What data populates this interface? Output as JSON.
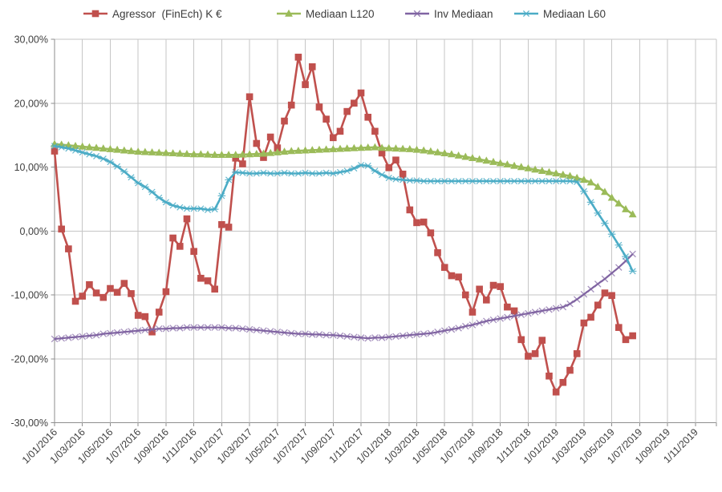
{
  "chart_data": {
    "type": "line",
    "title": "",
    "legend_position": "top",
    "grid": true,
    "background": "#ffffff",
    "grid_color": "#c6c6c6",
    "axis_color": "#8e8e8e",
    "text_color": "#404040",
    "x_axis": {
      "tick_labels": [
        "1/01/2016",
        "1/03/2016",
        "1/05/2016",
        "1/07/2016",
        "1/09/2016",
        "1/11/2016",
        "1/01/2017",
        "1/03/2017",
        "1/05/2017",
        "1/07/2017",
        "1/09/2017",
        "1/11/2017",
        "1/01/2018",
        "1/03/2018",
        "1/05/2018",
        "1/07/2018",
        "1/09/2018",
        "1/11/2018",
        "1/01/2019",
        "1/03/2019",
        "1/05/2019",
        "1/07/2019",
        "1/09/2019",
        "1/11/2019"
      ],
      "note": "data points are bi-weekly (4 points per 2-month tick), starting 1/01/2016, series end mid-June 2019"
    },
    "y_axis": {
      "tick_labels": [
        "30,00%",
        "20,00%",
        "10,00%",
        "0,00%",
        "-10,00%",
        "-20,00%",
        "-30,00%"
      ],
      "min": -30,
      "max": 30,
      "step": 10,
      "unit": "%"
    },
    "series": [
      {
        "name": "Agressor  (FinEch) K €",
        "color": "#C0504D",
        "marker": "square",
        "values": [
          12.5,
          0.3,
          -2.8,
          -11,
          -10.2,
          -8.4,
          -9.7,
          -10.4,
          -9,
          -9.6,
          -8.2,
          -9.8,
          -13.2,
          -13.4,
          -15.8,
          -12.7,
          -9.5,
          -1.1,
          -2.4,
          1.9,
          -3.2,
          -7.4,
          -7.8,
          -9.1,
          1,
          0.6,
          11.4,
          10.5,
          21,
          13.7,
          11.5,
          14.7,
          13,
          17.2,
          19.7,
          27.2,
          22.9,
          25.7,
          19.4,
          17.5,
          14.6,
          15.6,
          18.7,
          20,
          21.6,
          17.8,
          15.6,
          12.2,
          9.9,
          11.1,
          8.9,
          3.3,
          1.3,
          1.4,
          -0.3,
          -3.4,
          -5.7,
          -7,
          -7.2,
          -10,
          -12.7,
          -9.1,
          -10.8,
          -8.5,
          -8.7,
          -11.9,
          -12.5,
          -17,
          -19.6,
          -19.2,
          -17.1,
          -22.7,
          -25.2,
          -23.7,
          -21.8,
          -19.2,
          -14.4,
          -13.5,
          -11.6,
          -9.7,
          -10.1,
          -15.1,
          -17,
          -16.4
        ]
      },
      {
        "name": "Mediaan L120",
        "color": "#9BBB59",
        "marker": "triangle",
        "values": [
          13.6,
          13.5,
          13.4,
          13.3,
          13.2,
          13.1,
          13,
          12.9,
          12.8,
          12.7,
          12.6,
          12.5,
          12.4,
          12.35,
          12.3,
          12.25,
          12.2,
          12.15,
          12.1,
          12.05,
          12,
          12,
          11.95,
          11.9,
          11.9,
          11.9,
          11.9,
          11.95,
          12,
          12.05,
          12.1,
          12.2,
          12.3,
          12.4,
          12.5,
          12.55,
          12.6,
          12.65,
          12.7,
          12.75,
          12.8,
          12.85,
          12.9,
          12.95,
          13,
          13.05,
          13.1,
          13,
          12.95,
          12.9,
          12.85,
          12.8,
          12.7,
          12.6,
          12.45,
          12.3,
          12.15,
          12,
          11.8,
          11.6,
          11.4,
          11.2,
          11,
          10.8,
          10.6,
          10.4,
          10.2,
          10,
          9.8,
          9.6,
          9.4,
          9.2,
          9,
          8.8,
          8.6,
          8.3,
          8,
          7.6,
          6.9,
          6.1,
          5.2,
          4.3,
          3.4,
          2.6
        ]
      },
      {
        "name": "Inv Mediaan",
        "color": "#8064A2",
        "marker": "x",
        "values": [
          -16.9,
          -16.8,
          -16.7,
          -16.6,
          -16.5,
          -16.4,
          -16.3,
          -16.1,
          -16,
          -15.9,
          -15.8,
          -15.7,
          -15.6,
          -15.5,
          -15.4,
          -15.3,
          -15.3,
          -15.2,
          -15.2,
          -15.1,
          -15.1,
          -15.1,
          -15.1,
          -15.1,
          -15.1,
          -15.2,
          -15.2,
          -15.3,
          -15.4,
          -15.5,
          -15.6,
          -15.7,
          -15.8,
          -15.9,
          -16,
          -16.1,
          -16.1,
          -16.2,
          -16.2,
          -16.3,
          -16.3,
          -16.4,
          -16.5,
          -16.6,
          -16.7,
          -16.8,
          -16.7,
          -16.7,
          -16.6,
          -16.5,
          -16.4,
          -16.3,
          -16.2,
          -16.1,
          -16,
          -15.8,
          -15.6,
          -15.4,
          -15.2,
          -14.9,
          -14.7,
          -14.4,
          -14.1,
          -13.9,
          -13.7,
          -13.5,
          -13.3,
          -13.1,
          -12.9,
          -12.7,
          -12.5,
          -12.3,
          -12.1,
          -11.9,
          -11.4,
          -10.7,
          -9.9,
          -9.1,
          -8.3,
          -7.5,
          -6.6,
          -5.7,
          -4.7,
          -3.6
        ]
      },
      {
        "name": "Mediaan L60",
        "color": "#4BACC6",
        "marker": "star",
        "values": [
          13.3,
          13.1,
          12.9,
          12.6,
          12.3,
          12,
          11.7,
          11.3,
          10.8,
          10.1,
          9.3,
          8.4,
          7.5,
          6.9,
          6.1,
          5.2,
          4.5,
          4,
          3.7,
          3.5,
          3.5,
          3.5,
          3.3,
          3.4,
          5.5,
          8,
          9.2,
          9.1,
          9,
          9,
          9.1,
          9,
          9,
          9.1,
          9,
          9,
          9.1,
          9,
          9,
          9.1,
          9,
          9.2,
          9.4,
          9.8,
          10.3,
          10.2,
          9.4,
          8.8,
          8.3,
          8.1,
          8,
          7.9,
          7.9,
          7.8,
          7.8,
          7.8,
          7.8,
          7.8,
          7.8,
          7.8,
          7.8,
          7.8,
          7.8,
          7.8,
          7.8,
          7.8,
          7.8,
          7.8,
          7.8,
          7.8,
          7.8,
          7.8,
          7.8,
          7.8,
          7.8,
          7.7,
          6.2,
          4.5,
          2.8,
          1.2,
          -0.5,
          -2.2,
          -4,
          -6.3
        ]
      }
    ]
  }
}
